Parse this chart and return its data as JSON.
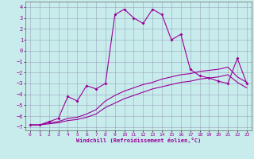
{
  "xlabel": "Windchill (Refroidissement éolien,°C)",
  "bg_color": "#c8ecec",
  "grid_color": "#8888aa",
  "line_color": "#990099",
  "xlim": [
    -0.5,
    23.5
  ],
  "ylim": [
    -7.3,
    4.5
  ],
  "xticks": [
    0,
    1,
    2,
    3,
    4,
    5,
    6,
    7,
    8,
    9,
    10,
    11,
    12,
    13,
    14,
    15,
    16,
    17,
    18,
    19,
    20,
    21,
    22,
    23
  ],
  "yticks": [
    -7,
    -6,
    -5,
    -4,
    -3,
    -2,
    -1,
    0,
    1,
    2,
    3,
    4
  ],
  "line1_x": [
    0,
    1,
    2,
    3,
    4,
    5,
    6,
    7,
    8,
    9,
    10,
    11,
    12,
    13,
    14,
    15,
    16,
    17,
    18,
    19,
    20,
    21,
    22,
    23
  ],
  "line1_y": [
    -6.8,
    -6.8,
    -6.5,
    -6.2,
    -4.2,
    -4.6,
    -3.2,
    -3.5,
    -3.0,
    3.3,
    3.8,
    3.0,
    2.5,
    3.8,
    3.3,
    1.0,
    1.5,
    -1.7,
    -2.3,
    -2.5,
    -2.8,
    -3.0,
    -0.7,
    -3.0
  ],
  "line2_x": [
    0,
    1,
    2,
    3,
    4,
    5,
    6,
    7,
    8,
    9,
    10,
    11,
    12,
    13,
    14,
    15,
    16,
    17,
    18,
    19,
    20,
    21,
    22,
    23
  ],
  "line2_y": [
    -6.8,
    -6.8,
    -6.6,
    -6.5,
    -6.2,
    -6.1,
    -5.8,
    -5.4,
    -4.6,
    -4.1,
    -3.7,
    -3.4,
    -3.1,
    -2.9,
    -2.6,
    -2.4,
    -2.2,
    -2.1,
    -1.9,
    -1.8,
    -1.7,
    -1.5,
    -2.4,
    -2.9
  ],
  "line3_x": [
    0,
    1,
    2,
    3,
    4,
    5,
    6,
    7,
    8,
    9,
    10,
    11,
    12,
    13,
    14,
    15,
    16,
    17,
    18,
    19,
    20,
    21,
    22,
    23
  ],
  "line3_y": [
    -6.8,
    -6.8,
    -6.7,
    -6.6,
    -6.4,
    -6.3,
    -6.1,
    -5.8,
    -5.2,
    -4.8,
    -4.4,
    -4.1,
    -3.8,
    -3.5,
    -3.3,
    -3.1,
    -2.9,
    -2.8,
    -2.6,
    -2.5,
    -2.4,
    -2.2,
    -2.9,
    -3.4
  ]
}
